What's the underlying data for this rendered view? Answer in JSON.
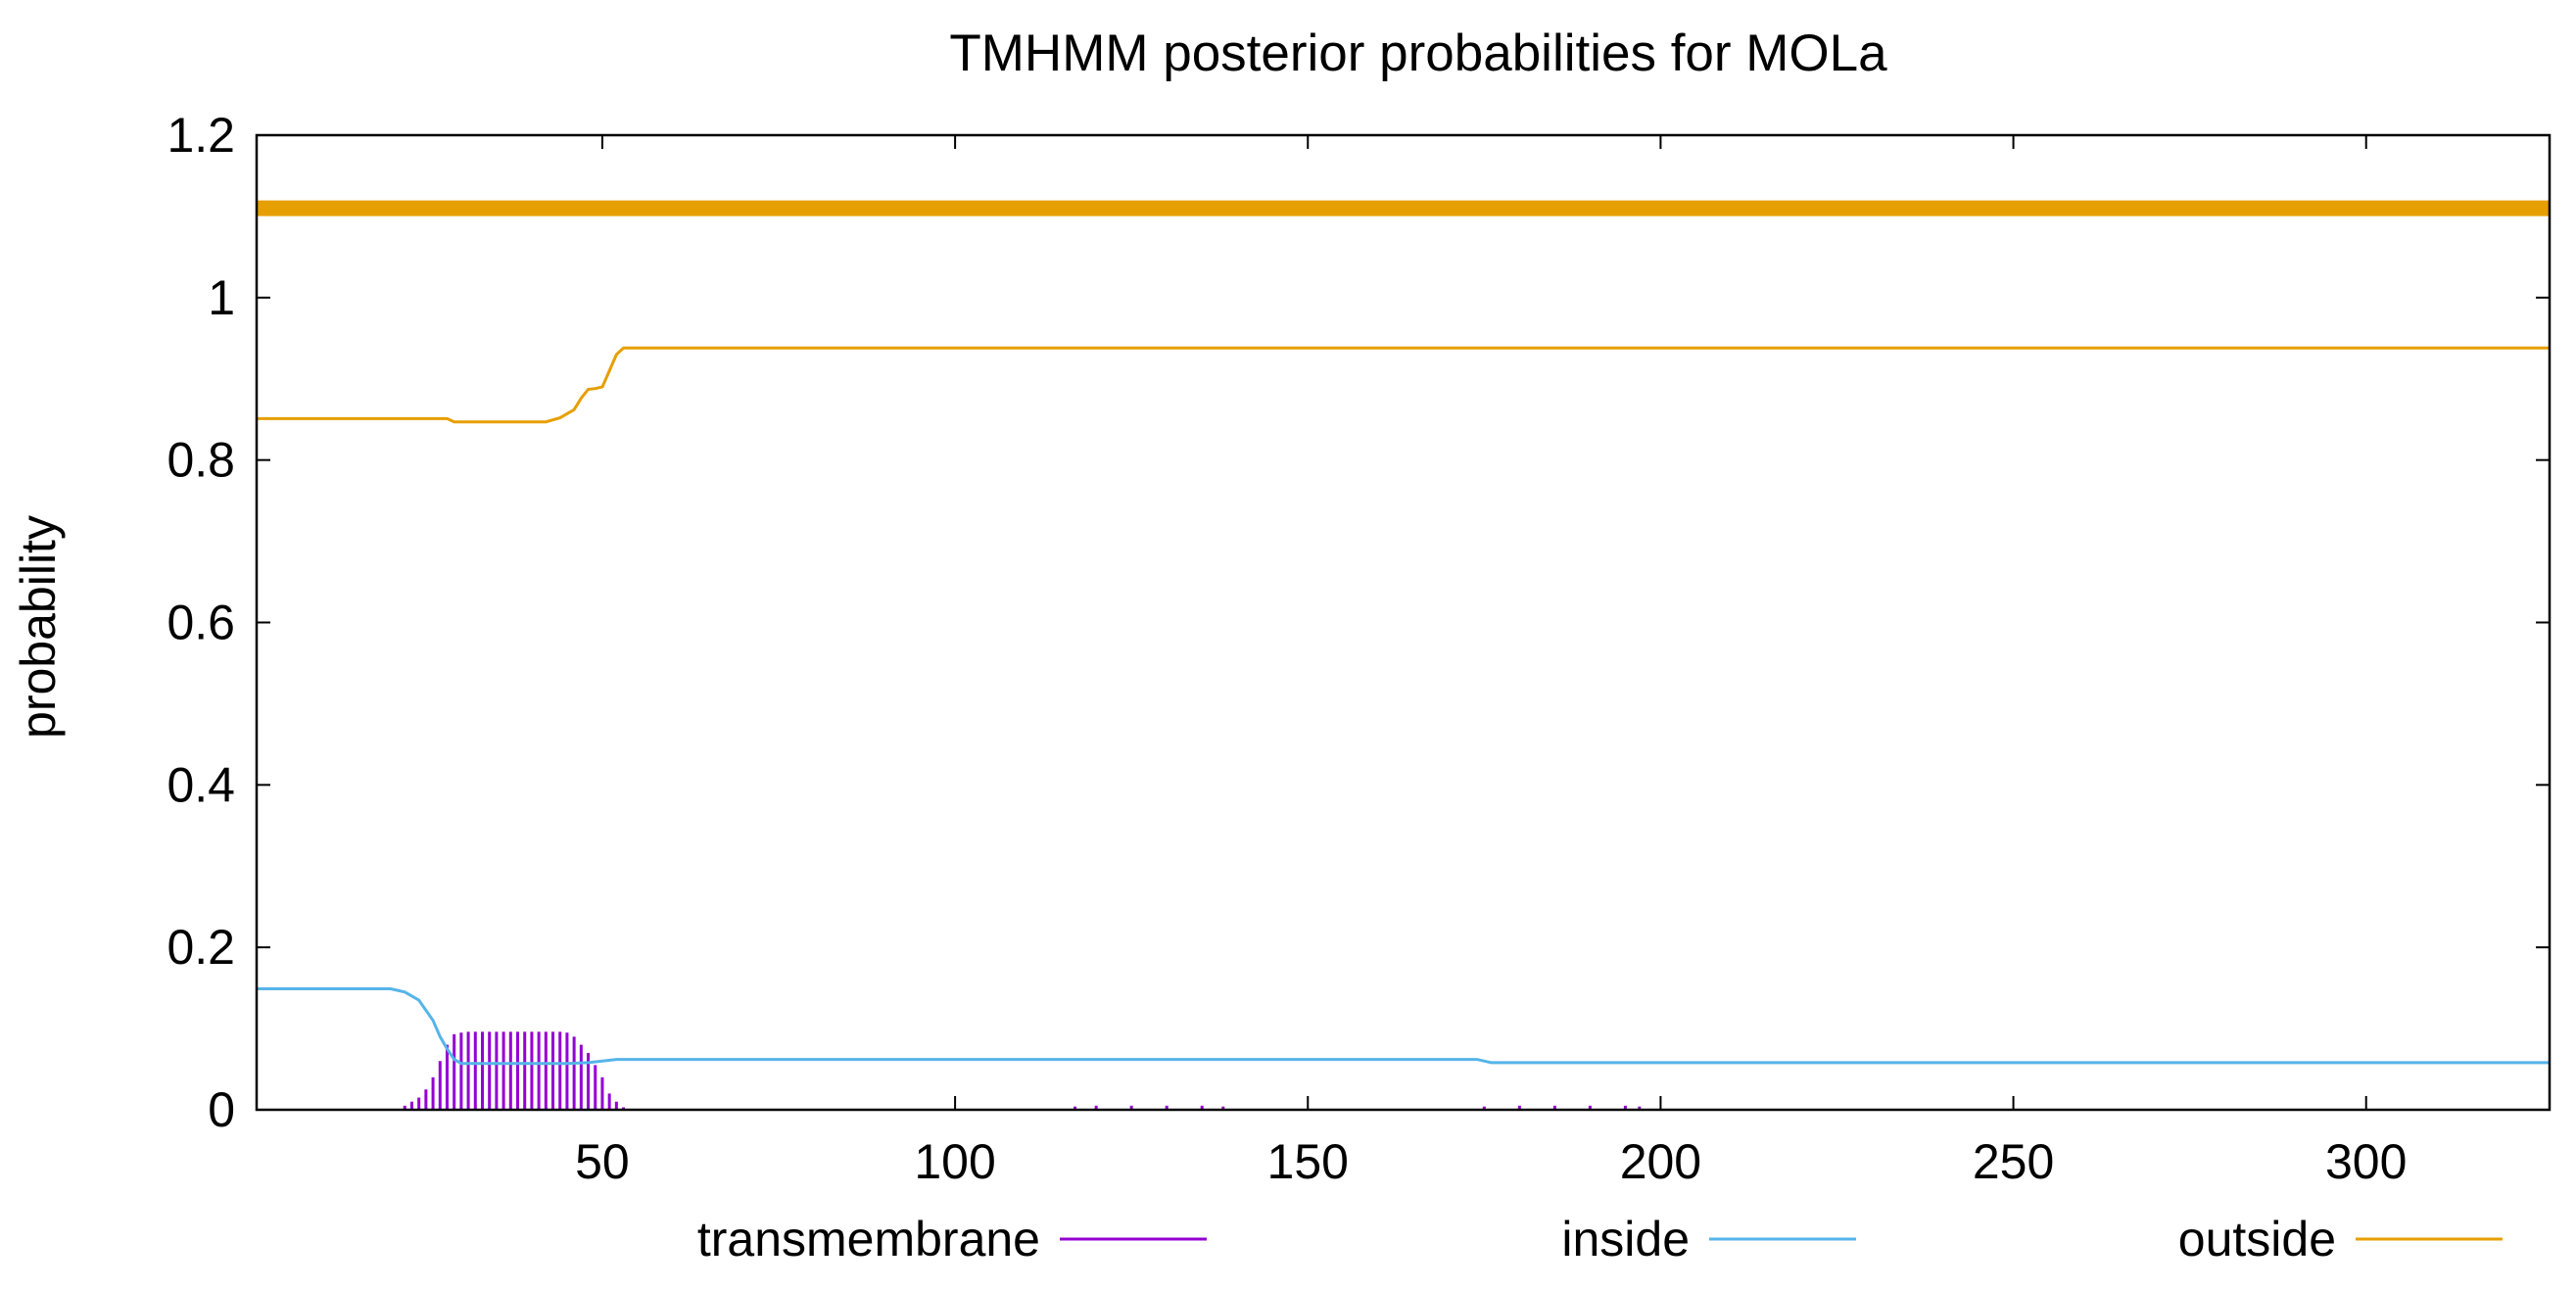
{
  "chart_data": {
    "type": "line",
    "title": "TMHMM posterior probabilities for MOLa",
    "xlabel": "",
    "ylabel": "probability",
    "xlim": [
      1,
      326
    ],
    "ylim": [
      0,
      1.2
    ],
    "x_ticks": [
      50,
      100,
      150,
      200,
      250,
      300
    ],
    "y_ticks": [
      0,
      0.2,
      0.4,
      0.6,
      0.8,
      1,
      1.2
    ],
    "y_tick_labels": [
      "0",
      "0.2",
      "0.4",
      "0.6",
      "0.8",
      "1",
      "1.2"
    ],
    "grid": false,
    "legend_position": "bottom",
    "predicted_region_bar": {
      "y": 1.11,
      "x_range": [
        1,
        326
      ],
      "color": "#e69f00"
    },
    "series": [
      {
        "name": "transmembrane",
        "style": "impulses",
        "color": "#9400d3",
        "x": [
          20,
          22,
          23,
          24,
          25,
          26,
          27,
          28,
          29,
          30,
          31,
          32,
          33,
          34,
          35,
          36,
          37,
          38,
          39,
          40,
          41,
          42,
          43,
          44,
          45,
          46,
          47,
          48,
          49,
          50,
          51,
          52,
          53,
          117,
          120,
          125,
          130,
          135,
          138,
          175,
          180,
          185,
          190,
          195,
          197
        ],
        "y": [
          0.0,
          0.005,
          0.01,
          0.015,
          0.025,
          0.04,
          0.06,
          0.08,
          0.093,
          0.095,
          0.096,
          0.096,
          0.096,
          0.096,
          0.096,
          0.096,
          0.096,
          0.096,
          0.096,
          0.096,
          0.096,
          0.096,
          0.096,
          0.096,
          0.095,
          0.09,
          0.08,
          0.07,
          0.055,
          0.04,
          0.02,
          0.01,
          0.003,
          0.004,
          0.005,
          0.005,
          0.005,
          0.005,
          0.004,
          0.004,
          0.005,
          0.005,
          0.005,
          0.005,
          0.004
        ]
      },
      {
        "name": "inside",
        "style": "line",
        "color": "#56b4e9",
        "x": [
          1,
          20,
          22,
          24,
          26,
          27,
          28,
          29,
          30,
          45,
          48,
          50,
          52,
          60,
          100,
          150,
          174,
          176,
          200,
          250,
          300,
          326
        ],
        "y": [
          0.149,
          0.149,
          0.145,
          0.135,
          0.11,
          0.09,
          0.075,
          0.062,
          0.057,
          0.057,
          0.058,
          0.06,
          0.062,
          0.062,
          0.062,
          0.062,
          0.062,
          0.058,
          0.058,
          0.058,
          0.058,
          0.058
        ]
      },
      {
        "name": "outside",
        "style": "line",
        "color": "#e69f00",
        "x": [
          1,
          28,
          29,
          42,
          44,
          46,
          47,
          48,
          49,
          50,
          51,
          52,
          53,
          60,
          100,
          150,
          200,
          250,
          300,
          326
        ],
        "y": [
          0.851,
          0.851,
          0.847,
          0.847,
          0.852,
          0.862,
          0.876,
          0.887,
          0.888,
          0.89,
          0.91,
          0.93,
          0.938,
          0.938,
          0.938,
          0.938,
          0.938,
          0.938,
          0.938,
          0.938
        ]
      }
    ]
  }
}
